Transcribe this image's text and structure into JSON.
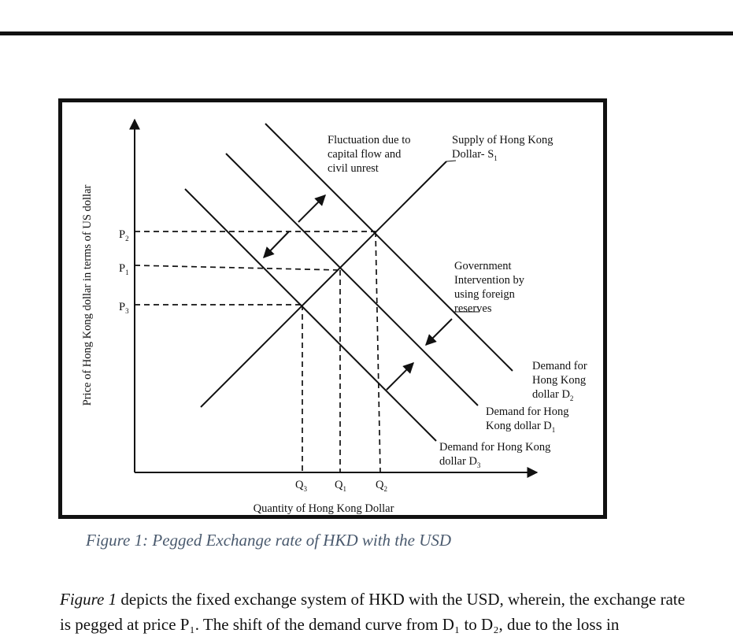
{
  "figure": {
    "y_axis_label": "Price of Hong Kong dollar in terms of US dollar",
    "x_axis_label": "Quantity of Hong Kong Dollar",
    "price_labels": [
      {
        "main": "P",
        "sub": "2"
      },
      {
        "main": "P",
        "sub": "1"
      },
      {
        "main": "P",
        "sub": "3"
      }
    ],
    "quantity_labels": [
      {
        "main": "Q",
        "sub": "3"
      },
      {
        "main": "Q",
        "sub": "1"
      },
      {
        "main": "Q",
        "sub": "2"
      }
    ],
    "fluctuation_note": [
      "Fluctuation due to",
      "capital flow and",
      "civil unrest"
    ],
    "supply_label": {
      "line1": "Supply of Hong Kong",
      "line2": "Dollar- S",
      "sub": "1"
    },
    "intervention_note": [
      "Government",
      "Intervention by",
      "using foreign",
      "reserves"
    ],
    "demand_d2_label": {
      "line1": "Demand for",
      "line2": "Hong Kong",
      "line3": "dollar D",
      "sub": "2"
    },
    "demand_d1_label": {
      "line1": "Demand for Hong",
      "line2": "Kong dollar D",
      "sub": "1"
    },
    "demand_d3_label": {
      "line1": "Demand for Hong Kong",
      "line2": "dollar D",
      "sub": "3"
    }
  },
  "caption": "Figure 1: Pegged Exchange rate of HKD with the USD",
  "paragraph": {
    "emphasis": "Figure 1",
    "text": " depicts the fixed exchange system of HKD with the USD, wherein, the exchange rate is pegged at price P₁. The shift of the demand curve from D₁ to D₂, due to the loss in"
  }
}
